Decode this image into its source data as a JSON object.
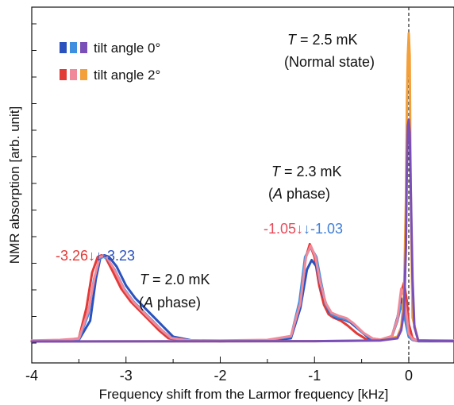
{
  "chart_data": {
    "type": "line",
    "xlabel": "Frequency shift from the Larmor frequency [kHz]",
    "ylabel": "NMR absorption [arb. unit]",
    "xlim": [
      -4,
      0.5
    ],
    "ylim": [
      0,
      1.0
    ],
    "x_ticks": [
      "-4",
      "-3",
      "-2",
      "-1",
      "0"
    ],
    "grid": false,
    "reference_line": {
      "x": 0,
      "style": "dashed"
    },
    "legend": {
      "placement": "top-left",
      "entries": [
        {
          "label": "tilt angle 0°",
          "colors": [
            "#2a52be",
            "#3f8fe0",
            "#7a4fb8"
          ]
        },
        {
          "label": "tilt angle 2°",
          "colors": [
            "#e23a36",
            "#f08a9a",
            "#f3a03a"
          ]
        }
      ]
    },
    "annotations": {
      "t25": {
        "T": "T",
        "text": " = 2.5 mK",
        "state": "(Normal state)"
      },
      "t23": {
        "T": "T",
        "text": " = 2.3 mK",
        "open": "(",
        "A": "A",
        "close": " phase)"
      },
      "t20": {
        "T": "T",
        "text": " = 2.0 mK",
        "open": "(",
        "A": "A",
        "close": " phase)"
      },
      "peak1_red": "-3.26",
      "peak1_blue": "-3.23",
      "peak2_red": "-1.05",
      "peak2_blue": "-1.03",
      "arrow": "↓"
    },
    "series": [
      {
        "color": "#e23a36",
        "x": [
          -4.0,
          -3.7,
          -3.5,
          -3.42,
          -3.36,
          -3.3,
          -3.26,
          -3.22,
          -3.15,
          -3.05,
          -2.95,
          -2.85,
          -2.75,
          -2.65,
          -2.55,
          -2.4,
          -2.0,
          -1.5,
          -1.25,
          -1.15,
          -1.1,
          -1.05,
          -1.0,
          -0.95,
          -0.9,
          -0.85,
          -0.8,
          -0.72,
          -0.65,
          -0.55,
          -0.45,
          -0.3,
          -0.18,
          -0.12,
          -0.08,
          -0.05,
          -0.02,
          0.0,
          0.04,
          0.1,
          0.2,
          0.5
        ],
        "y": [
          0.005,
          0.006,
          0.015,
          0.11,
          0.22,
          0.27,
          0.275,
          0.27,
          0.23,
          0.17,
          0.13,
          0.1,
          0.07,
          0.04,
          0.015,
          0.008,
          0.006,
          0.008,
          0.02,
          0.12,
          0.26,
          0.31,
          0.27,
          0.18,
          0.12,
          0.09,
          0.08,
          0.07,
          0.055,
          0.03,
          0.012,
          0.01,
          0.02,
          0.07,
          0.16,
          0.19,
          0.13,
          0.06,
          0.015,
          0.006,
          0.006,
          0.006
        ]
      },
      {
        "color": "#2a52be",
        "x": [
          -4.0,
          -3.7,
          -3.5,
          -3.38,
          -3.32,
          -3.27,
          -3.23,
          -3.18,
          -3.1,
          -3.0,
          -2.9,
          -2.8,
          -2.7,
          -2.6,
          -2.5,
          -2.3,
          -2.0,
          -1.5,
          -1.25,
          -1.15,
          -1.08,
          -1.03,
          -0.98,
          -0.92,
          -0.85,
          -0.78,
          -0.7,
          -0.62,
          -0.52,
          -0.42,
          -0.3,
          -0.18,
          -0.12,
          -0.08,
          -0.05,
          -0.02,
          0.0,
          0.04,
          0.1,
          0.2,
          0.5
        ],
        "y": [
          0.005,
          0.006,
          0.01,
          0.07,
          0.2,
          0.27,
          0.275,
          0.27,
          0.24,
          0.18,
          0.14,
          0.11,
          0.08,
          0.05,
          0.02,
          0.008,
          0.006,
          0.008,
          0.015,
          0.11,
          0.23,
          0.26,
          0.24,
          0.16,
          0.1,
          0.08,
          0.075,
          0.065,
          0.04,
          0.015,
          0.01,
          0.02,
          0.08,
          0.14,
          0.1,
          0.05,
          0.02,
          0.01,
          0.006,
          0.006,
          0.006
        ]
      },
      {
        "color": "#3f8fe0",
        "x": [
          -4.0,
          -3.7,
          -3.5,
          -3.4,
          -3.34,
          -3.28,
          -3.24,
          -3.2,
          -3.12,
          -3.02,
          -2.92,
          -2.82,
          -2.72,
          -2.62,
          -2.52,
          -2.35,
          -2.0,
          -1.5,
          -1.25,
          -1.16,
          -1.1,
          -1.04,
          -0.98,
          -0.93,
          -0.88,
          -0.82,
          -0.75,
          -0.68,
          -0.6,
          -0.5,
          -0.4,
          -0.3,
          -0.18,
          -0.12,
          -0.08,
          -0.05,
          -0.02,
          0.0,
          0.04,
          0.1,
          0.2,
          0.5
        ],
        "y": [
          0.006,
          0.008,
          0.012,
          0.09,
          0.2,
          0.265,
          0.27,
          0.265,
          0.23,
          0.17,
          0.13,
          0.1,
          0.07,
          0.04,
          0.015,
          0.008,
          0.007,
          0.009,
          0.02,
          0.13,
          0.27,
          0.3,
          0.27,
          0.19,
          0.12,
          0.09,
          0.08,
          0.075,
          0.065,
          0.035,
          0.015,
          0.01,
          0.02,
          0.07,
          0.12,
          0.09,
          0.045,
          0.02,
          0.01,
          0.007,
          0.007,
          0.007
        ]
      },
      {
        "color": "#f08a9a",
        "x": [
          -4.0,
          -3.7,
          -3.5,
          -3.4,
          -3.33,
          -3.28,
          -3.25,
          -3.2,
          -3.12,
          -3.02,
          -2.92,
          -2.82,
          -2.72,
          -2.62,
          -2.52,
          -2.35,
          -2.0,
          -1.5,
          -1.25,
          -1.15,
          -1.09,
          -1.04,
          -0.99,
          -0.94,
          -0.88,
          -0.82,
          -0.74,
          -0.66,
          -0.58,
          -0.48,
          -0.38,
          -0.3,
          -0.18,
          -0.12,
          -0.08,
          -0.05,
          -0.02,
          0.0,
          0.04,
          0.1,
          0.2,
          0.5
        ],
        "y": [
          0.008,
          0.01,
          0.014,
          0.1,
          0.21,
          0.27,
          0.272,
          0.268,
          0.228,
          0.168,
          0.128,
          0.098,
          0.068,
          0.04,
          0.016,
          0.009,
          0.008,
          0.01,
          0.022,
          0.125,
          0.27,
          0.305,
          0.27,
          0.19,
          0.125,
          0.095,
          0.085,
          0.078,
          0.06,
          0.032,
          0.014,
          0.011,
          0.022,
          0.075,
          0.17,
          0.15,
          0.08,
          0.03,
          0.012,
          0.008,
          0.008,
          0.008
        ]
      },
      {
        "color": "#f3a03a",
        "x": [
          -4.0,
          -1.0,
          -0.3,
          -0.12,
          -0.08,
          -0.05,
          -0.03,
          -0.02,
          -0.01,
          0.0,
          0.01,
          0.02,
          0.04,
          0.1,
          0.5
        ],
        "y": [
          0.005,
          0.006,
          0.008,
          0.02,
          0.05,
          0.15,
          0.45,
          0.75,
          0.9,
          0.97,
          0.9,
          0.5,
          0.08,
          0.008,
          0.006
        ]
      },
      {
        "color": "#7a4fb8",
        "x": [
          -4.0,
          -1.0,
          -0.3,
          -0.12,
          -0.08,
          -0.05,
          -0.03,
          -0.02,
          -0.01,
          0.0,
          0.01,
          0.02,
          0.04,
          0.06,
          0.1,
          0.5
        ],
        "y": [
          0.005,
          0.006,
          0.008,
          0.015,
          0.04,
          0.1,
          0.3,
          0.55,
          0.68,
          0.7,
          0.66,
          0.5,
          0.2,
          0.05,
          0.008,
          0.006
        ]
      }
    ]
  }
}
